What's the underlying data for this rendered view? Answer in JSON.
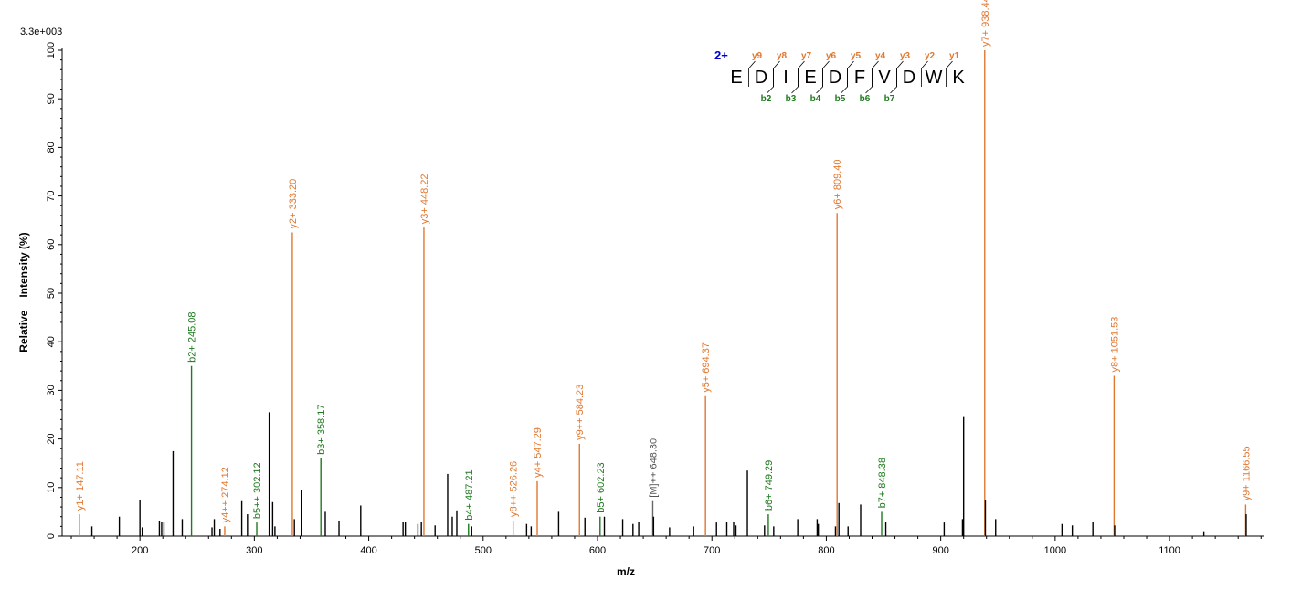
{
  "chart_data": {
    "type": "bar",
    "scale_label": "3.3e+003",
    "xlabel": "m/z",
    "ylabel_parts": [
      "Relative",
      "Intensity (%)"
    ],
    "xlim": [
      132,
      1183
    ],
    "ylim": [
      0,
      100
    ],
    "x_ticks": [
      200,
      300,
      400,
      500,
      600,
      700,
      800,
      900,
      1000,
      1100
    ],
    "y_ticks": [
      0,
      10,
      20,
      30,
      40,
      50,
      60,
      70,
      80,
      90,
      100
    ],
    "colors": {
      "unassigned": "#000000",
      "y_ion": "#e07830",
      "b_ion": "#1e7a1e",
      "precursor": "#666666",
      "charge": "#0000cc"
    },
    "peaks": [
      {
        "x": 147.11,
        "y": 4.5,
        "kind": "y",
        "label": "y1+ 147.11"
      },
      {
        "x": 158,
        "y": 2.0,
        "kind": "none"
      },
      {
        "x": 182,
        "y": 4.0,
        "kind": "none"
      },
      {
        "x": 200,
        "y": 7.5,
        "kind": "none"
      },
      {
        "x": 202,
        "y": 1.8,
        "kind": "none"
      },
      {
        "x": 217,
        "y": 3.2,
        "kind": "none"
      },
      {
        "x": 219,
        "y": 3.0,
        "kind": "none"
      },
      {
        "x": 221,
        "y": 2.8,
        "kind": "none"
      },
      {
        "x": 229,
        "y": 17.5,
        "kind": "none"
      },
      {
        "x": 237,
        "y": 3.5,
        "kind": "none"
      },
      {
        "x": 245.08,
        "y": 35.0,
        "kind": "b",
        "label": "b2+ 245.08"
      },
      {
        "x": 263,
        "y": 1.8,
        "kind": "none"
      },
      {
        "x": 265,
        "y": 3.5,
        "kind": "none"
      },
      {
        "x": 270,
        "y": 1.5,
        "kind": "none"
      },
      {
        "x": 274.12,
        "y": 2.0,
        "kind": "y",
        "label": "y4++ 274.12"
      },
      {
        "x": 289,
        "y": 7.2,
        "kind": "none"
      },
      {
        "x": 294,
        "y": 4.5,
        "kind": "none"
      },
      {
        "x": 302.12,
        "y": 2.8,
        "kind": "b",
        "label": "b5++ 302.12"
      },
      {
        "x": 313,
        "y": 25.5,
        "kind": "none"
      },
      {
        "x": 316,
        "y": 7.0,
        "kind": "none"
      },
      {
        "x": 318,
        "y": 2.0,
        "kind": "none"
      },
      {
        "x": 333.2,
        "y": 62.5,
        "kind": "y",
        "label": "y2+ 333.20"
      },
      {
        "x": 335,
        "y": 3.5,
        "kind": "none"
      },
      {
        "x": 341,
        "y": 9.5,
        "kind": "none"
      },
      {
        "x": 358.17,
        "y": 16.0,
        "kind": "b",
        "label": "b3+ 358.17"
      },
      {
        "x": 362,
        "y": 5.0,
        "kind": "none"
      },
      {
        "x": 374,
        "y": 3.2,
        "kind": "none"
      },
      {
        "x": 393,
        "y": 6.3,
        "kind": "none"
      },
      {
        "x": 430,
        "y": 3.0,
        "kind": "none"
      },
      {
        "x": 432,
        "y": 3.0,
        "kind": "none"
      },
      {
        "x": 443,
        "y": 2.5,
        "kind": "none"
      },
      {
        "x": 446,
        "y": 3.0,
        "kind": "none"
      },
      {
        "x": 448.22,
        "y": 63.5,
        "kind": "y",
        "label": "y3+ 448.22"
      },
      {
        "x": 458,
        "y": 2.2,
        "kind": "none"
      },
      {
        "x": 469,
        "y": 12.8,
        "kind": "none"
      },
      {
        "x": 473,
        "y": 4.0,
        "kind": "none"
      },
      {
        "x": 477,
        "y": 5.3,
        "kind": "none"
      },
      {
        "x": 487.21,
        "y": 2.5,
        "kind": "b",
        "label": "b4+ 487.21"
      },
      {
        "x": 490,
        "y": 2.0,
        "kind": "none"
      },
      {
        "x": 526.26,
        "y": 3.2,
        "kind": "y",
        "label": "y8++ 526.26"
      },
      {
        "x": 538,
        "y": 2.5,
        "kind": "none"
      },
      {
        "x": 542,
        "y": 2.0,
        "kind": "none"
      },
      {
        "x": 547.29,
        "y": 11.3,
        "kind": "y",
        "label": "y4+ 547.29"
      },
      {
        "x": 566,
        "y": 5.0,
        "kind": "none"
      },
      {
        "x": 584.23,
        "y": 19.0,
        "kind": "y",
        "label": "y9++ 584.23"
      },
      {
        "x": 589,
        "y": 3.8,
        "kind": "none"
      },
      {
        "x": 602.23,
        "y": 4.0,
        "kind": "b",
        "label": "b5+ 602.23"
      },
      {
        "x": 606,
        "y": 4.0,
        "kind": "none"
      },
      {
        "x": 622,
        "y": 3.5,
        "kind": "none"
      },
      {
        "x": 631,
        "y": 2.5,
        "kind": "none"
      },
      {
        "x": 636,
        "y": 3.0,
        "kind": "none"
      },
      {
        "x": 648.3,
        "y": 7.2,
        "kind": "precursor",
        "label": "[M]++ 648.30"
      },
      {
        "x": 649,
        "y": 4.0,
        "kind": "none"
      },
      {
        "x": 663,
        "y": 1.8,
        "kind": "none"
      },
      {
        "x": 684,
        "y": 2.0,
        "kind": "none"
      },
      {
        "x": 694.37,
        "y": 28.8,
        "kind": "y",
        "label": "y5+ 694.37"
      },
      {
        "x": 704,
        "y": 2.8,
        "kind": "none"
      },
      {
        "x": 713,
        "y": 3.0,
        "kind": "none"
      },
      {
        "x": 719,
        "y": 3.0,
        "kind": "none"
      },
      {
        "x": 721,
        "y": 2.2,
        "kind": "none"
      },
      {
        "x": 731,
        "y": 13.5,
        "kind": "none"
      },
      {
        "x": 746,
        "y": 2.2,
        "kind": "none"
      },
      {
        "x": 749.29,
        "y": 4.5,
        "kind": "b",
        "label": "b6+ 749.29"
      },
      {
        "x": 754,
        "y": 2.0,
        "kind": "none"
      },
      {
        "x": 775,
        "y": 3.5,
        "kind": "none"
      },
      {
        "x": 792,
        "y": 3.5,
        "kind": "none"
      },
      {
        "x": 793,
        "y": 2.5,
        "kind": "none"
      },
      {
        "x": 808,
        "y": 2.0,
        "kind": "none"
      },
      {
        "x": 809.4,
        "y": 66.5,
        "kind": "y",
        "label": "y6+ 809.40"
      },
      {
        "x": 811,
        "y": 6.8,
        "kind": "none"
      },
      {
        "x": 819,
        "y": 2.0,
        "kind": "none"
      },
      {
        "x": 830,
        "y": 6.5,
        "kind": "none"
      },
      {
        "x": 848.38,
        "y": 5.0,
        "kind": "b",
        "label": "b7+ 848.38"
      },
      {
        "x": 852,
        "y": 3.0,
        "kind": "none"
      },
      {
        "x": 903,
        "y": 2.8,
        "kind": "none"
      },
      {
        "x": 919,
        "y": 3.5,
        "kind": "none"
      },
      {
        "x": 920,
        "y": 24.5,
        "kind": "none"
      },
      {
        "x": 938.44,
        "y": 100,
        "kind": "y",
        "label": "y7+ 938.44"
      },
      {
        "x": 939,
        "y": 7.5,
        "kind": "none"
      },
      {
        "x": 948,
        "y": 3.5,
        "kind": "none"
      },
      {
        "x": 1006,
        "y": 2.5,
        "kind": "none"
      },
      {
        "x": 1015,
        "y": 2.2,
        "kind": "none"
      },
      {
        "x": 1033,
        "y": 3.0,
        "kind": "none"
      },
      {
        "x": 1051.53,
        "y": 33.0,
        "kind": "y",
        "label": "y8+ 1051.53"
      },
      {
        "x": 1052,
        "y": 2.2,
        "kind": "none"
      },
      {
        "x": 1130,
        "y": 1.0,
        "kind": "none"
      },
      {
        "x": 1166.55,
        "y": 6.5,
        "kind": "y",
        "label": "y9+ 1166.55"
      },
      {
        "x": 1167,
        "y": 4.5,
        "kind": "none"
      }
    ],
    "sequence": {
      "charge": "2+",
      "residues": [
        "E",
        "D",
        "I",
        "E",
        "D",
        "F",
        "V",
        "D",
        "W",
        "K"
      ],
      "y_ions": [
        "y9",
        "y8",
        "y7",
        "y6",
        "y5",
        "y4",
        "y3",
        "y2",
        "y1"
      ],
      "b_ions": [
        "b2",
        "b3",
        "b4",
        "b5",
        "b6",
        "b7"
      ],
      "b_ion_after_residue": [
        1,
        2,
        3,
        4,
        5,
        6
      ]
    }
  }
}
